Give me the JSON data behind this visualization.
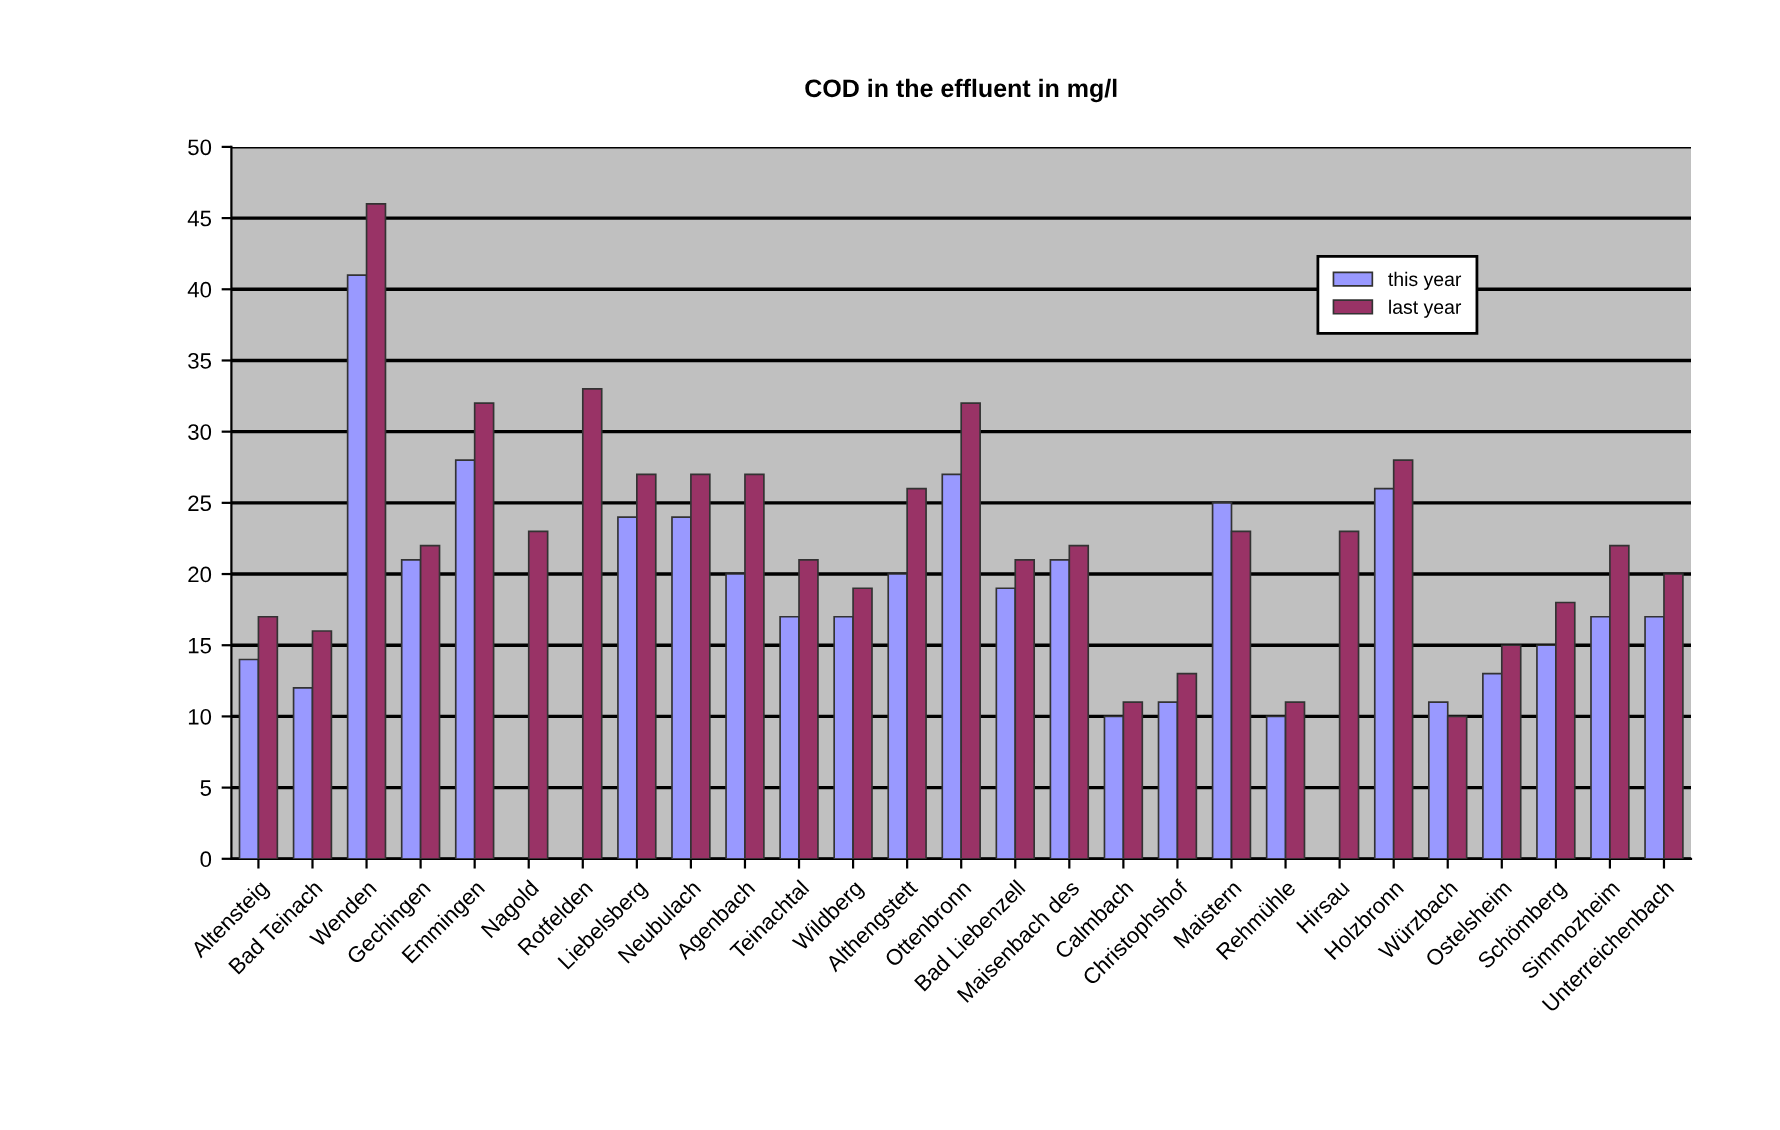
{
  "chart_data": {
    "type": "bar",
    "title": "COD in the effluent in mg/l",
    "categories": [
      "Altensteig",
      "Bad Teinach",
      "Wenden",
      "Gechingen",
      "Emmingen",
      "Nagold",
      "Rotfelden",
      "Liebelsberg",
      "Neubulach",
      "Agenbach",
      "Teinachtal",
      "Wildberg",
      "Althengstett",
      "Ottenbronn",
      "Bad Liebenzell",
      "Maisenbach des",
      "Calmbach",
      "Christophshof",
      "Maistern",
      "Rehmühle",
      "Hirsau",
      "Holzbronn",
      "Würzbach",
      "Ostelsheim",
      "Schömberg",
      "Simmozheim",
      "Unterreichenbach"
    ],
    "series": [
      {
        "name": "this year",
        "color": "#9999ff",
        "values": [
          14,
          12,
          41,
          21,
          28,
          null,
          null,
          24,
          24,
          20,
          17,
          17,
          20,
          27,
          19,
          21,
          10,
          11,
          25,
          10,
          null,
          26,
          11,
          13,
          15,
          17,
          17
        ]
      },
      {
        "name": "last year",
        "color": "#993366",
        "values": [
          17,
          16,
          46,
          22,
          32,
          23,
          33,
          27,
          27,
          27,
          21,
          19,
          26,
          32,
          21,
          22,
          11,
          13,
          23,
          11,
          23,
          28,
          10,
          15,
          18,
          22,
          20
        ]
      }
    ],
    "ylim": [
      0,
      50
    ],
    "yticks": [
      0,
      5,
      10,
      15,
      20,
      25,
      30,
      35,
      40,
      45,
      50
    ],
    "grid": "y",
    "legend": "top right"
  }
}
